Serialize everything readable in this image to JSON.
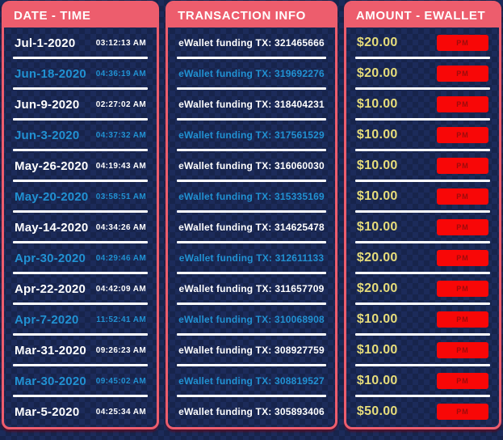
{
  "panels": {
    "date_time": {
      "header": "DATE - TIME"
    },
    "transaction": {
      "header": "TRANSACTION INFO"
    },
    "amount": {
      "header": "AMOUNT - EWALLET"
    }
  },
  "table": {
    "action_label": "PM",
    "rows": [
      {
        "date": "Jul-1-2020",
        "time": "03:12:13 AM",
        "tx": "eWallet funding TX: 321465666",
        "amount": "$20.00"
      },
      {
        "date": "Jun-18-2020",
        "time": "04:36:19 AM",
        "tx": "eWallet funding TX: 319692276",
        "amount": "$20.00"
      },
      {
        "date": "Jun-9-2020",
        "time": "02:27:02 AM",
        "tx": "eWallet funding TX: 318404231",
        "amount": "$10.00"
      },
      {
        "date": "Jun-3-2020",
        "time": "04:37:32 AM",
        "tx": "eWallet funding TX: 317561529",
        "amount": "$10.00"
      },
      {
        "date": "May-26-2020",
        "time": "04:19:43 AM",
        "tx": "eWallet funding TX: 316060030",
        "amount": "$10.00"
      },
      {
        "date": "May-20-2020",
        "time": "03:58:51 AM",
        "tx": "eWallet funding TX: 315335169",
        "amount": "$10.00"
      },
      {
        "date": "May-14-2020",
        "time": "04:34:26 AM",
        "tx": "eWallet funding TX: 314625478",
        "amount": "$10.00"
      },
      {
        "date": "Apr-30-2020",
        "time": "04:29:46 AM",
        "tx": "eWallet funding TX: 312611133",
        "amount": "$20.00"
      },
      {
        "date": "Apr-22-2020",
        "time": "04:42:09 AM",
        "tx": "eWallet funding TX: 311657709",
        "amount": "$20.00"
      },
      {
        "date": "Apr-7-2020",
        "time": "11:52:41 AM",
        "tx": "eWallet funding TX: 310068908",
        "amount": "$10.00"
      },
      {
        "date": "Mar-31-2020",
        "time": "09:26:23 AM",
        "tx": "eWallet funding TX: 308927759",
        "amount": "$10.00"
      },
      {
        "date": "Mar-30-2020",
        "time": "09:45:02 AM",
        "tx": "eWallet funding TX: 308819527",
        "amount": "$10.00"
      },
      {
        "date": "Mar-5-2020",
        "time": "04:25:34 AM",
        "tx": "eWallet funding TX: 305893406",
        "amount": "$50.00"
      }
    ]
  },
  "colors": {
    "accent_salmon": "#ed5d6d",
    "bg_base": "#1c2b5a",
    "bg_check": "#17244c",
    "row_blue": "#2191d2",
    "row_white": "#ffffff",
    "amount_gold": "#e6dc7a",
    "button_red": "#f80707",
    "button_text": "#9e0b0b"
  }
}
